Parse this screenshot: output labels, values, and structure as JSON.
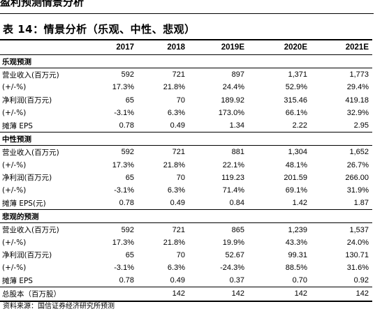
{
  "page": {
    "top_heading": "盈利预测情景分析",
    "table_title": "表 14：情景分析（乐观、中性、悲观）",
    "source": "资料来源：国信证券经济研究所预测"
  },
  "table": {
    "columns": [
      "",
      "2017",
      "2018",
      "2019E",
      "2020E",
      "2021E"
    ],
    "sections": [
      {
        "title": "乐观预测",
        "rows": [
          {
            "label": "营业收入(百万元)",
            "values": [
              "592",
              "721",
              "897",
              "1,371",
              "1,773"
            ]
          },
          {
            "label": "(+/-%)",
            "values": [
              "17.3%",
              "21.8%",
              "24.4%",
              "52.9%",
              "29.4%"
            ]
          },
          {
            "label": "净利润(百万元)",
            "values": [
              "65",
              "70",
              "189.92",
              "315.46",
              "419.18"
            ]
          },
          {
            "label": "(+/-%)",
            "values": [
              "-3.1%",
              "6.3%",
              "173.0%",
              "66.1%",
              "32.9%"
            ]
          },
          {
            "label": "摊薄 EPS",
            "values": [
              "0.78",
              "0.49",
              "1.34",
              "2.22",
              "2.95"
            ]
          }
        ]
      },
      {
        "title": "中性预测",
        "rows": [
          {
            "label": "营业收入(百万元)",
            "values": [
              "592",
              "721",
              "881",
              "1,304",
              "1,652"
            ]
          },
          {
            "label": "(+/-%)",
            "values": [
              "17.3%",
              "21.8%",
              "22.1%",
              "48.1%",
              "26.7%"
            ]
          },
          {
            "label": "净利润(百万元)",
            "values": [
              "65",
              "70",
              "119.23",
              "201.59",
              "266.00"
            ]
          },
          {
            "label": "(+/-%)",
            "values": [
              "-3.1%",
              "6.3%",
              "71.4%",
              "69.1%",
              "31.9%"
            ]
          },
          {
            "label": "摊薄 EPS(元)",
            "values": [
              "0.78",
              "0.49",
              "0.84",
              "1.42",
              "1.87"
            ]
          }
        ]
      },
      {
        "title": "悲观的预测",
        "rows": [
          {
            "label": "营业收入(百万元)",
            "values": [
              "592",
              "721",
              "865",
              "1,239",
              "1,537"
            ]
          },
          {
            "label": "(+/-%)",
            "values": [
              "17.3%",
              "21.8%",
              "19.9%",
              "43.3%",
              "24.0%"
            ]
          },
          {
            "label": "净利润(百万元)",
            "values": [
              "65",
              "70",
              "52.67",
              "99.31",
              "130.71"
            ]
          },
          {
            "label": "(+/-%)",
            "values": [
              "-3.1%",
              "6.3%",
              "-24.3%",
              "88.5%",
              "31.6%"
            ]
          },
          {
            "label": "摊薄 EPS",
            "values": [
              "0.78",
              "0.49",
              "0.37",
              "0.70",
              "0.92"
            ]
          }
        ]
      }
    ],
    "total_row": {
      "label": "总股本（百万股）",
      "values": [
        "",
        "142",
        "142",
        "142",
        "142"
      ]
    }
  }
}
